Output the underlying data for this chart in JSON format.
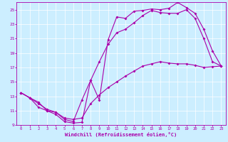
{
  "xlabel": "Windchill (Refroidissement éolien,°C)",
  "bg_color": "#cceeff",
  "line_color": "#aa00aa",
  "xlim": [
    -0.5,
    23.5
  ],
  "ylim": [
    9,
    26
  ],
  "xticks": [
    0,
    1,
    2,
    3,
    4,
    5,
    6,
    7,
    8,
    9,
    10,
    11,
    12,
    13,
    14,
    15,
    16,
    17,
    18,
    19,
    20,
    21,
    22,
    23
  ],
  "yticks": [
    9,
    11,
    13,
    15,
    17,
    19,
    21,
    23,
    25
  ],
  "curve1_x": [
    0,
    1,
    2,
    3,
    4,
    5,
    6,
    7,
    8,
    9,
    10,
    11,
    12,
    13,
    14,
    15,
    16,
    17,
    18,
    19,
    20,
    21,
    22,
    23
  ],
  "curve1_y": [
    13.5,
    12.8,
    12.2,
    11.0,
    10.5,
    9.5,
    9.3,
    9.4,
    15.2,
    12.5,
    20.8,
    24.0,
    23.8,
    24.8,
    24.9,
    25.1,
    25.0,
    25.2,
    26.0,
    25.3,
    24.5,
    22.3,
    19.3,
    17.2
  ],
  "curve2_x": [
    0,
    1,
    2,
    3,
    4,
    5,
    6,
    7,
    8,
    9,
    10,
    11,
    12,
    13,
    14,
    15,
    16,
    17,
    18,
    19,
    20,
    21,
    22,
    23
  ],
  "curve2_y": [
    13.5,
    12.8,
    11.5,
    11.0,
    10.8,
    9.8,
    9.5,
    12.5,
    15.2,
    17.8,
    20.2,
    21.8,
    22.3,
    23.2,
    24.2,
    24.9,
    24.6,
    24.5,
    24.5,
    25.0,
    23.8,
    21.0,
    17.8,
    17.2
  ],
  "curve3_x": [
    0,
    1,
    2,
    3,
    4,
    5,
    6,
    7,
    8,
    9,
    10,
    11,
    12,
    13,
    14,
    15,
    16,
    17,
    18,
    19,
    20,
    21,
    22,
    23
  ],
  "curve3_y": [
    13.5,
    12.8,
    12.0,
    11.2,
    10.8,
    10.0,
    9.8,
    10.0,
    12.0,
    13.2,
    14.2,
    15.0,
    15.8,
    16.5,
    17.2,
    17.5,
    17.8,
    17.6,
    17.5,
    17.5,
    17.3,
    17.0,
    17.1,
    17.2
  ]
}
